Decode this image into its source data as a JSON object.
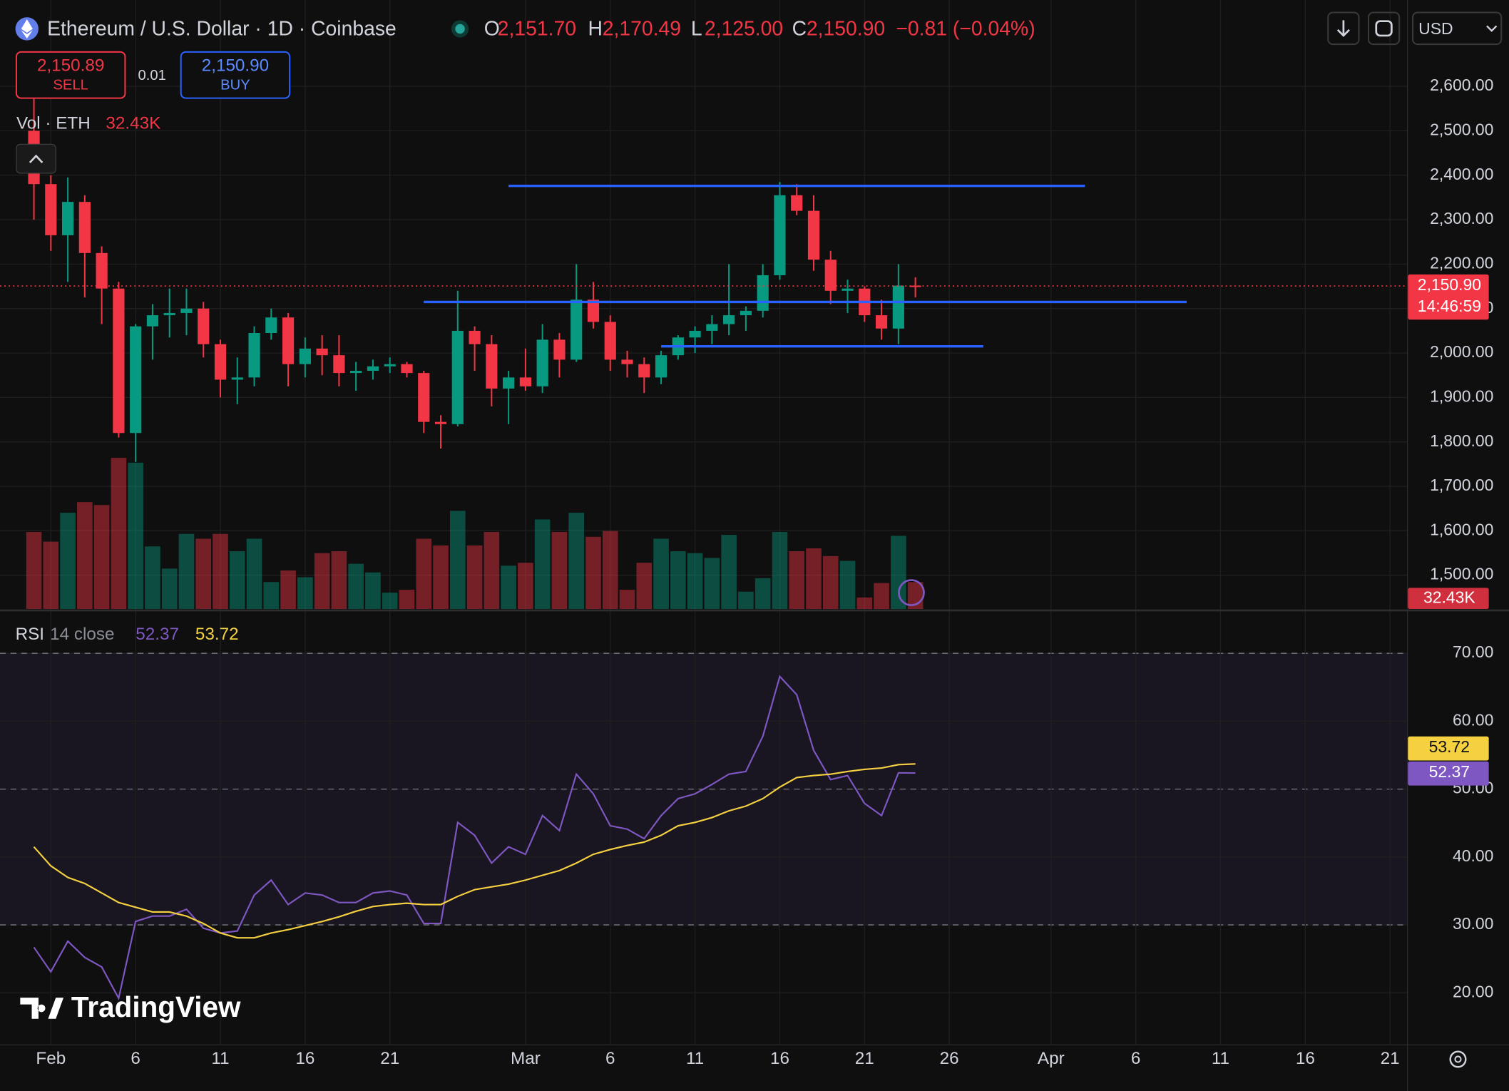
{
  "header": {
    "symbol": "Ethereum / U.S. Dollar · 1D · Coinbase",
    "ohlc": [
      {
        "key": "O",
        "value": "2,151.70"
      },
      {
        "key": "H",
        "value": "2,170.49"
      },
      {
        "key": "L",
        "value": "2,125.00"
      },
      {
        "key": "C",
        "value": "2,150.90"
      }
    ],
    "change": "−0.81 (−0.04%)",
    "currency": "USD"
  },
  "trade": {
    "sell_price": "2,150.89",
    "sell": "SELL",
    "spread": "0.01",
    "buy_price": "2,150.90",
    "buy": "BUY"
  },
  "watermark": "TradingView",
  "chart_data": [
    {
      "type": "candlestick",
      "x": [
        "Jan 31",
        "Feb 1",
        "Feb 2",
        "Feb 3",
        "Feb 4",
        "Feb 5",
        "Feb 6",
        "Feb 7",
        "Feb 8",
        "Feb 9",
        "Feb 10",
        "Feb 11",
        "Feb 12",
        "Feb 13",
        "Feb 14",
        "Feb 15",
        "Feb 16",
        "Feb 17",
        "Feb 18",
        "Feb 19",
        "Feb 20",
        "Feb 21",
        "Feb 22",
        "Feb 23",
        "Feb 24",
        "Feb 25",
        "Feb 26",
        "Feb 27",
        "Feb 28",
        "Mar 1",
        "Mar 2",
        "Mar 3",
        "Mar 4",
        "Mar 5",
        "Mar 6",
        "Mar 7",
        "Mar 8",
        "Mar 9",
        "Mar 10",
        "Mar 11",
        "Mar 12",
        "Mar 13",
        "Mar 14",
        "Mar 15",
        "Mar 16",
        "Mar 17",
        "Mar 18",
        "Mar 19",
        "Mar 20",
        "Mar 21",
        "Mar 22",
        "Mar 23",
        "Mar 24"
      ],
      "open": [
        2500,
        2380,
        2265,
        2340,
        2225,
        2145,
        1820,
        2060,
        2085,
        2090,
        2100,
        2020,
        1940,
        1945,
        2045,
        2080,
        1975,
        2010,
        1995,
        1955,
        1960,
        1970,
        1975,
        1955,
        1845,
        1840,
        2050,
        2020,
        1920,
        1945,
        1925,
        2030,
        1985,
        2120,
        2070,
        1985,
        1975,
        1945,
        1995,
        2035,
        2050,
        2065,
        2085,
        2095,
        2175,
        2355,
        2320,
        2210,
        2140,
        2145,
        2085,
        2055,
        2151.7
      ],
      "high": [
        2590,
        2400,
        2395,
        2355,
        2240,
        2160,
        2065,
        2110,
        2145,
        2145,
        2115,
        2030,
        1990,
        2060,
        2100,
        2090,
        2035,
        2040,
        2040,
        1980,
        1985,
        1990,
        1980,
        1960,
        1860,
        2140,
        2060,
        2040,
        1960,
        2010,
        2065,
        2045,
        2200,
        2160,
        2085,
        2005,
        1990,
        2005,
        2040,
        2060,
        2085,
        2200,
        2105,
        2200,
        2385,
        2380,
        2355,
        2230,
        2165,
        2150,
        2120,
        2200,
        2170.49
      ],
      "low": [
        2300,
        2230,
        2160,
        2125,
        2065,
        1810,
        1755,
        1985,
        2035,
        2040,
        1990,
        1900,
        1885,
        1925,
        2030,
        1925,
        1945,
        1950,
        1925,
        1915,
        1940,
        1955,
        1945,
        1820,
        1785,
        1835,
        1960,
        1880,
        1840,
        1915,
        1910,
        1945,
        1980,
        2055,
        1960,
        1945,
        1910,
        1930,
        1985,
        2000,
        2020,
        2040,
        2050,
        2080,
        2165,
        2310,
        2185,
        2110,
        2090,
        2070,
        2030,
        2020,
        2125
      ],
      "close": [
        2380,
        2265,
        2340,
        2225,
        2145,
        1820,
        2060,
        2085,
        2090,
        2100,
        2020,
        1940,
        1945,
        2045,
        2080,
        1975,
        2010,
        1995,
        1955,
        1960,
        1970,
        1975,
        1955,
        1845,
        1840,
        2050,
        2020,
        1920,
        1945,
        1925,
        2030,
        1985,
        2120,
        2070,
        1985,
        1975,
        1945,
        1995,
        2035,
        2050,
        2065,
        2085,
        2095,
        2175,
        2355,
        2320,
        2210,
        2140,
        2145,
        2085,
        2055,
        2151.7,
        2150.9
      ],
      "volume": [
        92800,
        81200,
        116000,
        128800,
        125300,
        182100,
        176300,
        75400,
        48700,
        90500,
        84700,
        90500,
        69600,
        84700,
        32500,
        46400,
        38300,
        67300,
        69600,
        54500,
        44100,
        19700,
        23200,
        84700,
        76600,
        118300,
        76600,
        92800,
        52200,
        55700,
        107900,
        92800,
        116000,
        87000,
        94000,
        23200,
        55700,
        84700,
        69600,
        67300,
        61500,
        89300,
        20900,
        37100,
        92800,
        69600,
        73100,
        63800,
        58000,
        13900,
        31300,
        88200,
        32430
      ],
      "volume_title": "Vol · ETH",
      "volume_last_label": "32.43K",
      "volume_ylim": [
        0,
        400000
      ],
      "up_color": "#089981",
      "down_color": "#f23645",
      "xlim": [
        "Jan 29",
        "Apr 22"
      ],
      "ylim": [
        1424,
        2777
      ],
      "yticks": [
        {
          "value": 1500,
          "label": "1,500.00"
        },
        {
          "value": 1600,
          "label": "1,600.00"
        },
        {
          "value": 1700,
          "label": "1,700.00"
        },
        {
          "value": 1800,
          "label": "1,800.00"
        },
        {
          "value": 1900,
          "label": "1,900.00"
        },
        {
          "value": 2000,
          "label": "2,000.00"
        },
        {
          "value": 2100,
          "label": "2,100.00"
        },
        {
          "value": 2200,
          "label": "2,200.00"
        },
        {
          "value": 2300,
          "label": "2,300.00"
        },
        {
          "value": 2400,
          "label": "2,400.00"
        },
        {
          "value": 2500,
          "label": "2,500.00"
        },
        {
          "value": 2600,
          "label": "2,600.00"
        }
      ],
      "grid": true,
      "last_price_label": "2,150.90",
      "countdown": "14:46:59",
      "lines": [
        {
          "value": 2376,
          "x": [
            "Feb 28",
            "Apr 3"
          ]
        },
        {
          "value": 2115,
          "x": [
            "Feb 23",
            "Apr 9"
          ]
        },
        {
          "value": 2015,
          "x": [
            "Mar 9",
            "Mar 28"
          ]
        }
      ],
      "line_color": "#2962ff"
    },
    {
      "type": "line",
      "title": "RSI",
      "subtitle": "14 close",
      "x": [
        "Jan 31",
        "Feb 1",
        "Feb 2",
        "Feb 3",
        "Feb 4",
        "Feb 5",
        "Feb 6",
        "Feb 7",
        "Feb 8",
        "Feb 9",
        "Feb 10",
        "Feb 11",
        "Feb 12",
        "Feb 13",
        "Feb 14",
        "Feb 15",
        "Feb 16",
        "Feb 17",
        "Feb 18",
        "Feb 19",
        "Feb 20",
        "Feb 21",
        "Feb 22",
        "Feb 23",
        "Feb 24",
        "Feb 25",
        "Feb 26",
        "Feb 27",
        "Feb 28",
        "Mar 1",
        "Mar 2",
        "Mar 3",
        "Mar 4",
        "Mar 5",
        "Mar 6",
        "Mar 7",
        "Mar 8",
        "Mar 9",
        "Mar 10",
        "Mar 11",
        "Mar 12",
        "Mar 13",
        "Mar 14",
        "Mar 15",
        "Mar 16",
        "Mar 17",
        "Mar 18",
        "Mar 19",
        "Mar 20",
        "Mar 21",
        "Mar 22",
        "Mar 23",
        "Mar 24"
      ],
      "series": [
        {
          "color": "#7e57c2",
          "last_label": "52.37",
          "values": [
            26.7,
            23.1,
            27.6,
            25.2,
            23.8,
            19.2,
            30.5,
            31.3,
            31.3,
            32.3,
            29.5,
            28.8,
            29.1,
            34.4,
            36.6,
            33.0,
            34.7,
            34.4,
            33.3,
            33.3,
            34.7,
            35.0,
            34.4,
            30.2,
            30.2,
            45.1,
            43.2,
            39.1,
            41.5,
            40.4,
            46.1,
            43.9,
            52.2,
            49.3,
            44.6,
            44.1,
            42.7,
            46.1,
            48.6,
            49.3,
            50.7,
            52.2,
            52.6,
            57.8,
            66.6,
            63.9,
            55.7,
            51.4,
            52.0,
            47.9,
            46.1,
            52.4,
            52.37
          ]
        },
        {
          "color": "#f5d142",
          "last_label": "53.72",
          "values": [
            41.5,
            38.7,
            37.0,
            36.1,
            34.7,
            33.3,
            32.6,
            31.9,
            31.9,
            31.3,
            30.2,
            28.8,
            28.1,
            28.1,
            28.8,
            29.3,
            29.9,
            30.5,
            31.2,
            32.0,
            32.7,
            33.0,
            33.2,
            33.0,
            33.0,
            34.2,
            35.2,
            35.6,
            36.0,
            36.6,
            37.3,
            38.0,
            39.1,
            40.4,
            41.1,
            41.7,
            42.2,
            43.2,
            44.6,
            45.1,
            45.8,
            46.8,
            47.5,
            48.6,
            50.3,
            51.7,
            52.0,
            52.2,
            52.6,
            52.9,
            53.1,
            53.6,
            53.72
          ]
        }
      ],
      "bands": [
        30,
        50,
        70
      ],
      "band_fill": "#7e57c2",
      "xlim": [
        "Jan 29",
        "Apr 22"
      ],
      "ylim": [
        12.48,
        75.96
      ],
      "yticks": [
        {
          "value": 20,
          "label": "20.00"
        },
        {
          "value": 30,
          "label": "30.00"
        },
        {
          "value": 40,
          "label": "40.00"
        },
        {
          "value": 50,
          "label": "50.00"
        },
        {
          "value": 60,
          "label": "60.00"
        },
        {
          "value": 70,
          "label": "70.00"
        }
      ],
      "xticks": [
        {
          "value": "Feb 1",
          "label": "Feb"
        },
        {
          "value": "Feb 6",
          "label": "6"
        },
        {
          "value": "Feb 11",
          "label": "11"
        },
        {
          "value": "Feb 16",
          "label": "16"
        },
        {
          "value": "Feb 21",
          "label": "21"
        },
        {
          "value": "Mar 1",
          "label": "Mar"
        },
        {
          "value": "Mar 6",
          "label": "6"
        },
        {
          "value": "Mar 11",
          "label": "11"
        },
        {
          "value": "Mar 16",
          "label": "16"
        },
        {
          "value": "Mar 21",
          "label": "21"
        },
        {
          "value": "Mar 26",
          "label": "26"
        },
        {
          "value": "Apr 1",
          "label": "Apr"
        },
        {
          "value": "Apr 6",
          "label": "6"
        },
        {
          "value": "Apr 11",
          "label": "11"
        },
        {
          "value": "Apr 16",
          "label": "16"
        },
        {
          "value": "Apr 21",
          "label": "21"
        }
      ]
    }
  ]
}
